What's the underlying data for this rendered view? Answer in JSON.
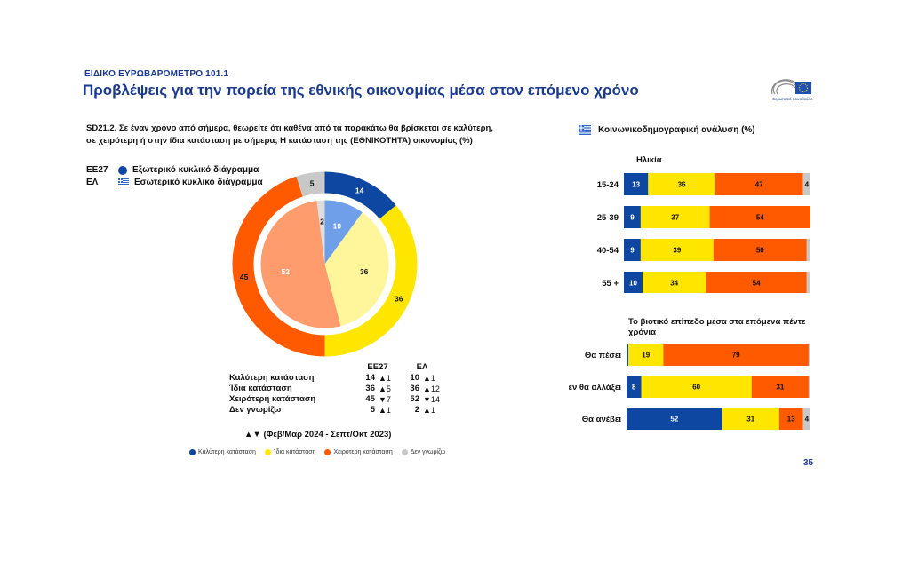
{
  "header": {
    "kicker": "ΕΙΔΙΚΟ ΕΥΡΩΒΑΡΟΜΕΤΡΟ 101.1",
    "title": "Προβλέψεις για την πορεία της εθνικής οικονομίας μέσα στον επόμενο χρόνο",
    "logo_caption": "Ευρωπαϊκό Κοινοβούλιο"
  },
  "question": "SD21.2. Σε έναν χρόνο από σήμερα, θεωρείτε ότι καθένα από τα παρακάτω θα βρίσκεται σε καλύτερη, σε χειρότερη ή στην ίδια κατάσταση με σήμερα; Η κατάσταση της (ΕΘΝΙΚΟΤΗΤΑ) οικονομίας (%)",
  "ring_legend": {
    "outer_code": "ΕΕ27",
    "outer_label": "Εξωτερικό κυκλικό διάγραμμα",
    "inner_code": "ΕΛ",
    "inner_label": "Εσωτερικό κυκλικό διάγραμμα"
  },
  "colors": {
    "better": "#0e47a1",
    "same": "#ffe600",
    "worse": "#ff5a00",
    "dk": "#c8c8c8",
    "better_inner": "#6e9fe8",
    "same_inner": "#fff59a",
    "worse_inner": "#ff9c6e",
    "dk_inner": "#dedede",
    "title_blue": "#1a3a8f"
  },
  "chart_data": [
    {
      "type": "pie",
      "title": "",
      "series": [
        {
          "name": "ΕΕ27",
          "labels": [
            "Καλύτερη κατάσταση",
            "Ίδια κατάσταση",
            "Χειρότερη κατάσταση",
            "Δεν γνωρίζω"
          ],
          "values": [
            14,
            36,
            45,
            5
          ]
        },
        {
          "name": "ΕΛ",
          "labels": [
            "Καλύτερη κατάσταση",
            "Ίδια κατάσταση",
            "Χειρότερη κατάσταση",
            "Δεν γνωρίζω"
          ],
          "values": [
            10,
            36,
            52,
            2
          ]
        }
      ]
    },
    {
      "type": "bar",
      "orientation": "horizontal",
      "stacked": true,
      "title": "Ηλικία",
      "categories": [
        "15-24",
        "25-39",
        "40-54",
        "55 +"
      ],
      "series": [
        {
          "name": "Καλύτερη κατάσταση",
          "values": [
            13,
            9,
            9,
            10
          ]
        },
        {
          "name": "Ίδια κατάσταση",
          "values": [
            36,
            37,
            39,
            34
          ]
        },
        {
          "name": "Χειρότερη κατάσταση",
          "values": [
            47,
            54,
            50,
            54
          ]
        },
        {
          "name": "Δεν γνωρίζω",
          "values": [
            4,
            0,
            2,
            2
          ]
        }
      ]
    },
    {
      "type": "bar",
      "orientation": "horizontal",
      "stacked": true,
      "title": "Το βιοτικό επίπεδο μέσα στα επόμενα πέντε χρόνια",
      "categories": [
        "Θα πέσει",
        "Δεν θα αλλάξει",
        "Θα ανέβει"
      ],
      "series": [
        {
          "name": "Καλύτερη κατάσταση",
          "values": [
            1,
            8,
            52
          ]
        },
        {
          "name": "Ίδια κατάσταση",
          "values": [
            19,
            60,
            31
          ]
        },
        {
          "name": "Χειρότερη κατάσταση",
          "values": [
            79,
            31,
            13
          ]
        },
        {
          "name": "Δεν γνωρίζω",
          "values": [
            1,
            1,
            4
          ]
        }
      ]
    }
  ],
  "summary_table": {
    "col_eu": "ΕΕ27",
    "col_el": "ΕΛ",
    "rows": [
      {
        "label": "Καλύτερη κατάσταση",
        "eu": "14",
        "eu_chg": "▲1",
        "el": "10",
        "el_chg": "▲1"
      },
      {
        "label": "Ίδια κατάσταση",
        "eu": "36",
        "eu_chg": "▲5",
        "el": "36",
        "el_chg": "▲12"
      },
      {
        "label": "Χειρότερη κατάσταση",
        "eu": "45",
        "eu_chg": "▼7",
        "el": "52",
        "el_chg": "▼14"
      },
      {
        "label": "Δεν γνωρίζω",
        "eu": "5",
        "eu_chg": "▲1",
        "el": "2",
        "el_chg": "▲1"
      }
    ]
  },
  "change_note": "▲▼ (Φεβ/Μαρ 2024 - Σεπτ/Οκτ 2023)",
  "bottom_legend": [
    "Καλύτερη κατάσταση",
    "Ίδια κατάσταση",
    "Χειρότερη κατάσταση",
    "Δεν γνωρίζω"
  ],
  "socio_header": "Κοινωνικοδημογραφική ανάλυση (%)",
  "page_number": "35"
}
